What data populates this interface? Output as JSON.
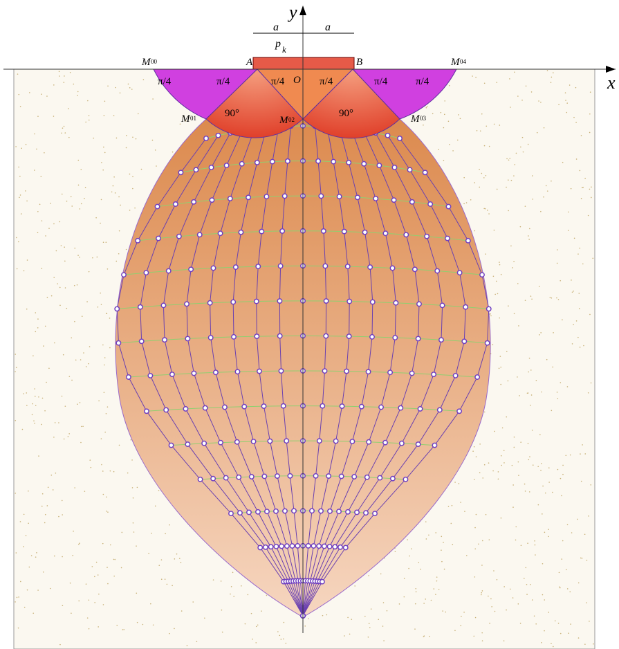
{
  "axes": {
    "y": "y",
    "x": "x"
  },
  "dimensions": [
    "a",
    "a"
  ],
  "load": {
    "symbol": "p",
    "subscript": "k"
  },
  "points": [
    "A",
    "B",
    "O"
  ],
  "nodes": [
    {
      "letter": "M",
      "index": "00"
    },
    {
      "letter": "M",
      "index": "04"
    },
    {
      "letter": "M",
      "index": "01"
    },
    {
      "letter": "M",
      "index": "02"
    },
    {
      "letter": "M",
      "index": "03"
    }
  ],
  "angles": [
    "π/4",
    "π/4",
    "π/4",
    "π/4",
    "π/4",
    "π/4"
  ],
  "right_angles": [
    "90°",
    "90°"
  ]
}
